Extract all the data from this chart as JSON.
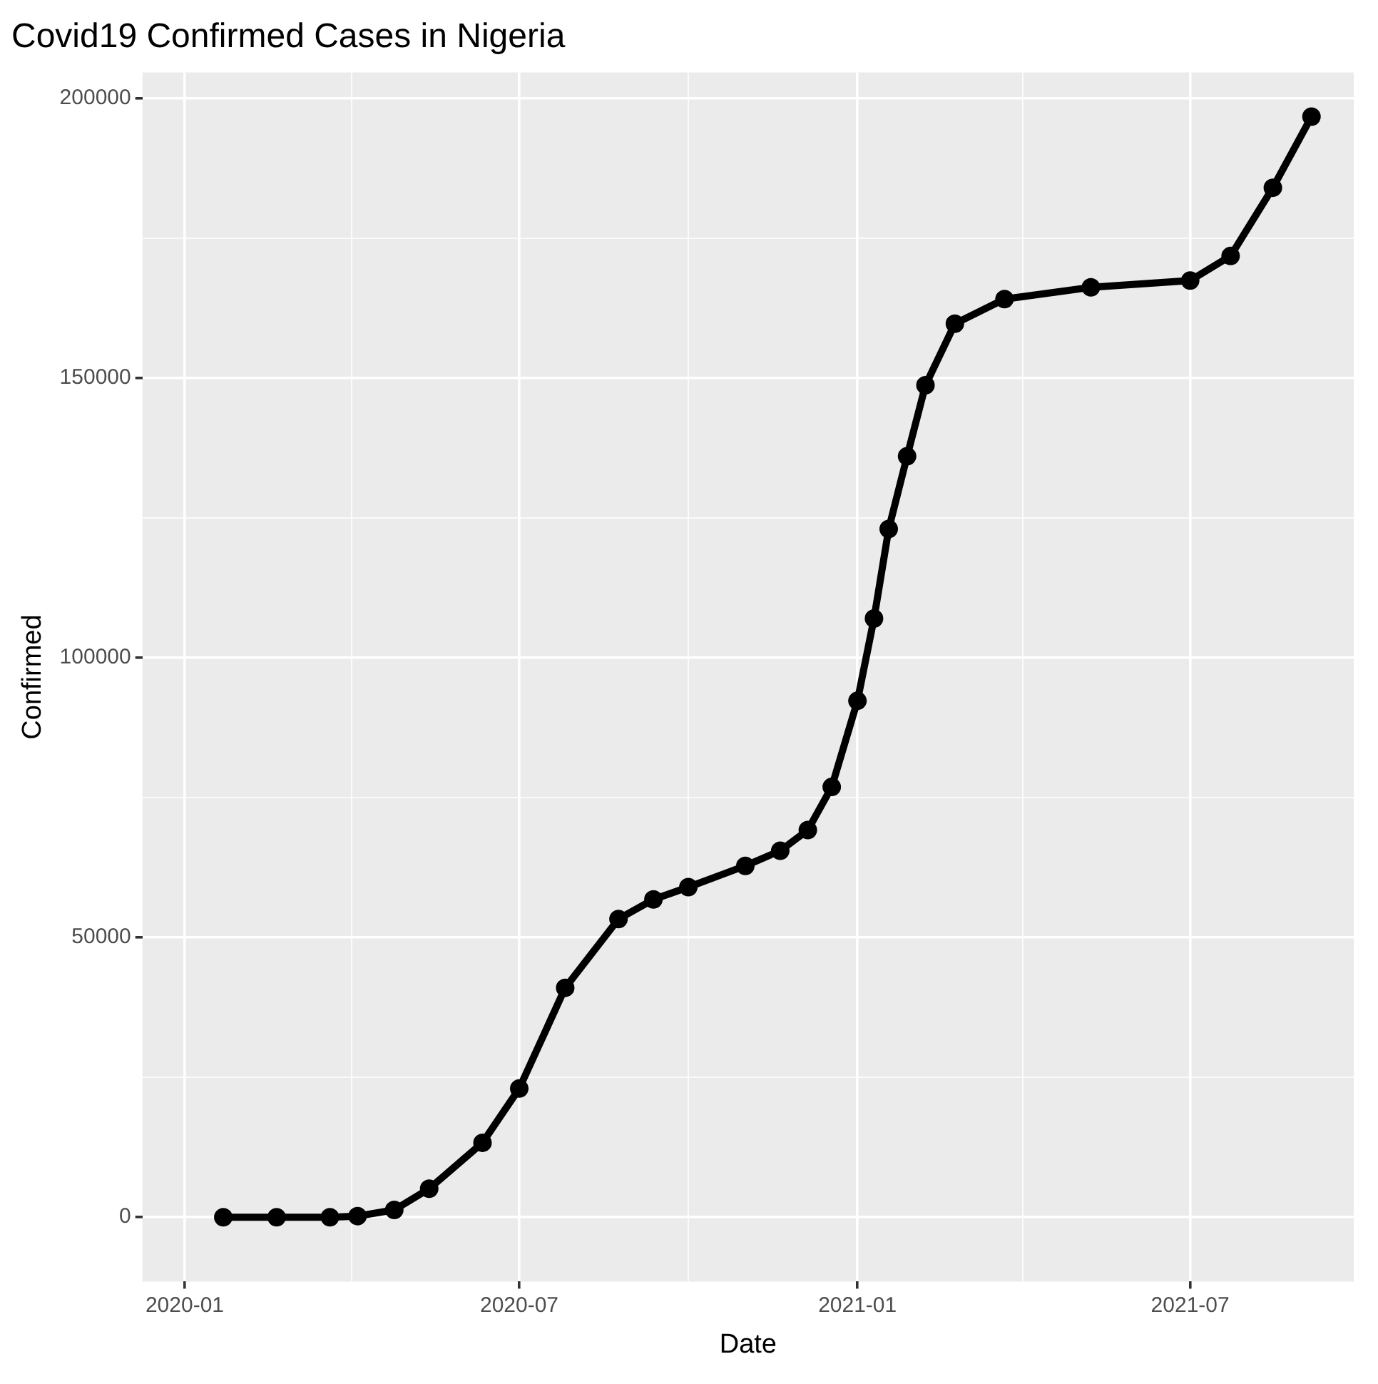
{
  "chart_data": {
    "type": "line",
    "title": "Covid19 Confirmed Cases in Nigeria",
    "xlabel": "Date",
    "ylabel": "Confirmed",
    "x": [
      "2020-01-22",
      "2020-02-20",
      "2020-03-20",
      "2020-04-04",
      "2020-04-24",
      "2020-05-13",
      "2020-06-11",
      "2020-07-01",
      "2020-07-26",
      "2020-08-24",
      "2020-09-12",
      "2020-10-01",
      "2020-11-01",
      "2020-11-20",
      "2020-12-05",
      "2020-12-18",
      "2021-01-01",
      "2021-01-10",
      "2021-01-18",
      "2021-01-28",
      "2021-02-07",
      "2021-02-23",
      "2021-03-22",
      "2021-05-08",
      "2021-07-01",
      "2021-07-23",
      "2021-08-15",
      "2021-09-05"
    ],
    "series": [
      {
        "color": "#000000",
        "values": [
          0,
          0,
          0,
          200,
          1300,
          5100,
          13300,
          23000,
          41000,
          53300,
          56800,
          59000,
          62800,
          65500,
          69200,
          76900,
          92300,
          107000,
          123000,
          136000,
          148700,
          159700,
          164100,
          166200,
          167400,
          171800,
          184000,
          196700
        ]
      }
    ],
    "xlim": [
      "2019-12-09",
      "2021-09-28"
    ],
    "xticks": [
      {
        "value": "2020-01",
        "label": "2020-01"
      },
      {
        "value": "2020-04",
        "label": null
      },
      {
        "value": "2020-07",
        "label": "2020-07"
      },
      {
        "value": "2020-10",
        "label": null
      },
      {
        "value": "2021-01",
        "label": "2021-01"
      },
      {
        "value": "2021-04",
        "label": null
      },
      {
        "value": "2021-07",
        "label": "2021-07"
      }
    ],
    "ylim": [
      -11500,
      204600
    ],
    "yticks": [
      0,
      {
        "value": 25000,
        "label": null
      },
      50000,
      {
        "value": 75000,
        "label": null
      },
      100000,
      {
        "value": 125000,
        "label": null
      },
      150000,
      {
        "value": 175000,
        "label": null
      },
      200000
    ],
    "grid": true,
    "legend": false,
    "marker": "circle",
    "line_style": "solid"
  }
}
